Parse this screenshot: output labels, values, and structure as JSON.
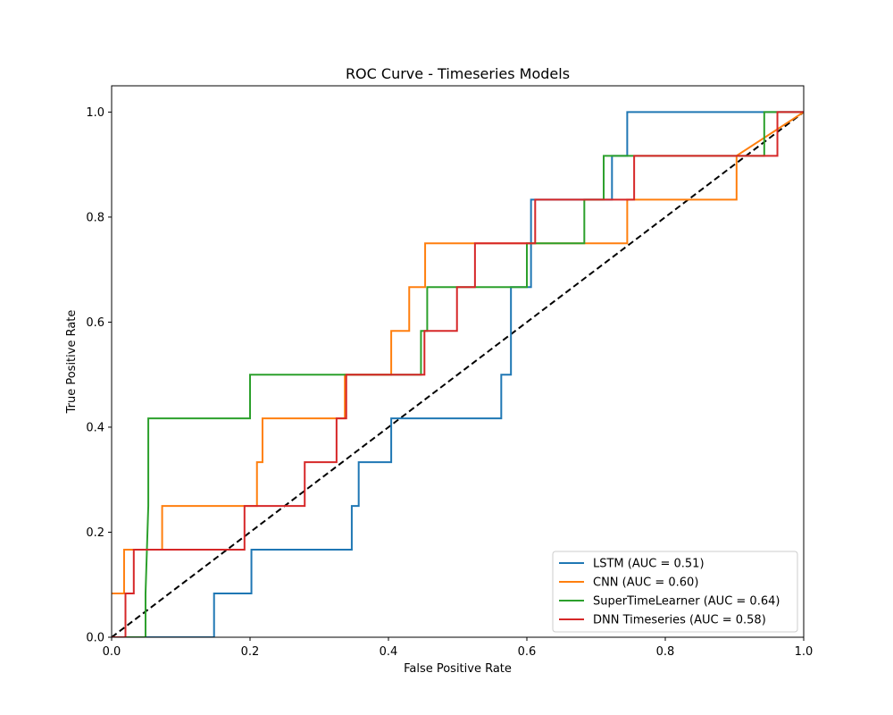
{
  "chart_data": {
    "type": "line",
    "title": "ROC Curve - Timeseries Models",
    "xlabel": "False Positive Rate",
    "ylabel": "True Positive Rate",
    "xlim": [
      0.0,
      1.0
    ],
    "ylim": [
      0.0,
      1.05
    ],
    "xticks": [
      "0.0",
      "0.2",
      "0.4",
      "0.6",
      "0.8",
      "1.0"
    ],
    "yticks": [
      "0.0",
      "0.2",
      "0.4",
      "0.6",
      "0.8",
      "1.0"
    ],
    "grid": false,
    "legend_position": "lower-right",
    "series": [
      {
        "name": "LSTM (AUC = 0.51)",
        "color": "#1f77b4",
        "x": [
          0,
          0.148,
          0.148,
          0.202,
          0.202,
          0.347,
          0.347,
          0.357,
          0.357,
          0.404,
          0.404,
          0.563,
          0.563,
          0.577,
          0.577,
          0.606,
          0.606,
          0.723,
          0.723,
          0.745,
          0.745,
          1.0
        ],
        "y": [
          0,
          0,
          0.0833,
          0.0833,
          0.1667,
          0.1667,
          0.25,
          0.25,
          0.3333,
          0.3333,
          0.4167,
          0.4167,
          0.5,
          0.5,
          0.6667,
          0.6667,
          0.8333,
          0.8333,
          0.9167,
          0.9167,
          1.0,
          1.0
        ]
      },
      {
        "name": "CNN (AUC = 0.60)",
        "color": "#ff7f0e",
        "x": [
          0,
          0.018,
          0.018,
          0.073,
          0.073,
          0.21,
          0.21,
          0.218,
          0.218,
          0.337,
          0.337,
          0.404,
          0.404,
          0.43,
          0.43,
          0.453,
          0.453,
          0.745,
          0.745,
          0.903,
          0.903,
          1.0
        ],
        "y": [
          0.0833,
          0.0833,
          0.1667,
          0.1667,
          0.25,
          0.25,
          0.3333,
          0.3333,
          0.4167,
          0.4167,
          0.5,
          0.5,
          0.5833,
          0.5833,
          0.6667,
          0.6667,
          0.75,
          0.75,
          0.8333,
          0.8333,
          0.9167,
          1.0
        ]
      },
      {
        "name": "SuperTimeLearner (AUC = 0.64)",
        "color": "#2ca02c",
        "x": [
          0,
          0.049,
          0.049,
          0.053,
          0.053,
          0.2,
          0.2,
          0.447,
          0.447,
          0.456,
          0.456,
          0.6,
          0.6,
          0.683,
          0.683,
          0.711,
          0.711,
          0.943,
          0.943,
          1.0
        ],
        "y": [
          0,
          0,
          0.0833,
          0.25,
          0.4167,
          0.4167,
          0.5,
          0.5,
          0.5833,
          0.5833,
          0.6667,
          0.6667,
          0.75,
          0.75,
          0.8333,
          0.8333,
          0.9167,
          0.9167,
          1.0,
          1.0
        ]
      },
      {
        "name": "DNN Timeseries (AUC = 0.58)",
        "color": "#d62728",
        "x": [
          0,
          0.02,
          0.02,
          0.032,
          0.032,
          0.192,
          0.192,
          0.279,
          0.279,
          0.325,
          0.325,
          0.339,
          0.339,
          0.452,
          0.452,
          0.499,
          0.499,
          0.525,
          0.525,
          0.612,
          0.612,
          0.755,
          0.755,
          0.962,
          0.962,
          1.0
        ],
        "y": [
          0,
          0,
          0.0833,
          0.0833,
          0.1667,
          0.1667,
          0.25,
          0.25,
          0.3333,
          0.3333,
          0.4167,
          0.4167,
          0.5,
          0.5,
          0.5833,
          0.5833,
          0.6667,
          0.6667,
          0.75,
          0.75,
          0.8333,
          0.8333,
          0.9167,
          0.9167,
          1.0,
          1.0
        ]
      }
    ],
    "reference_line": {
      "x": [
        0,
        1
      ],
      "y": [
        0,
        1
      ],
      "color": "#000000",
      "style": "dashed"
    }
  }
}
